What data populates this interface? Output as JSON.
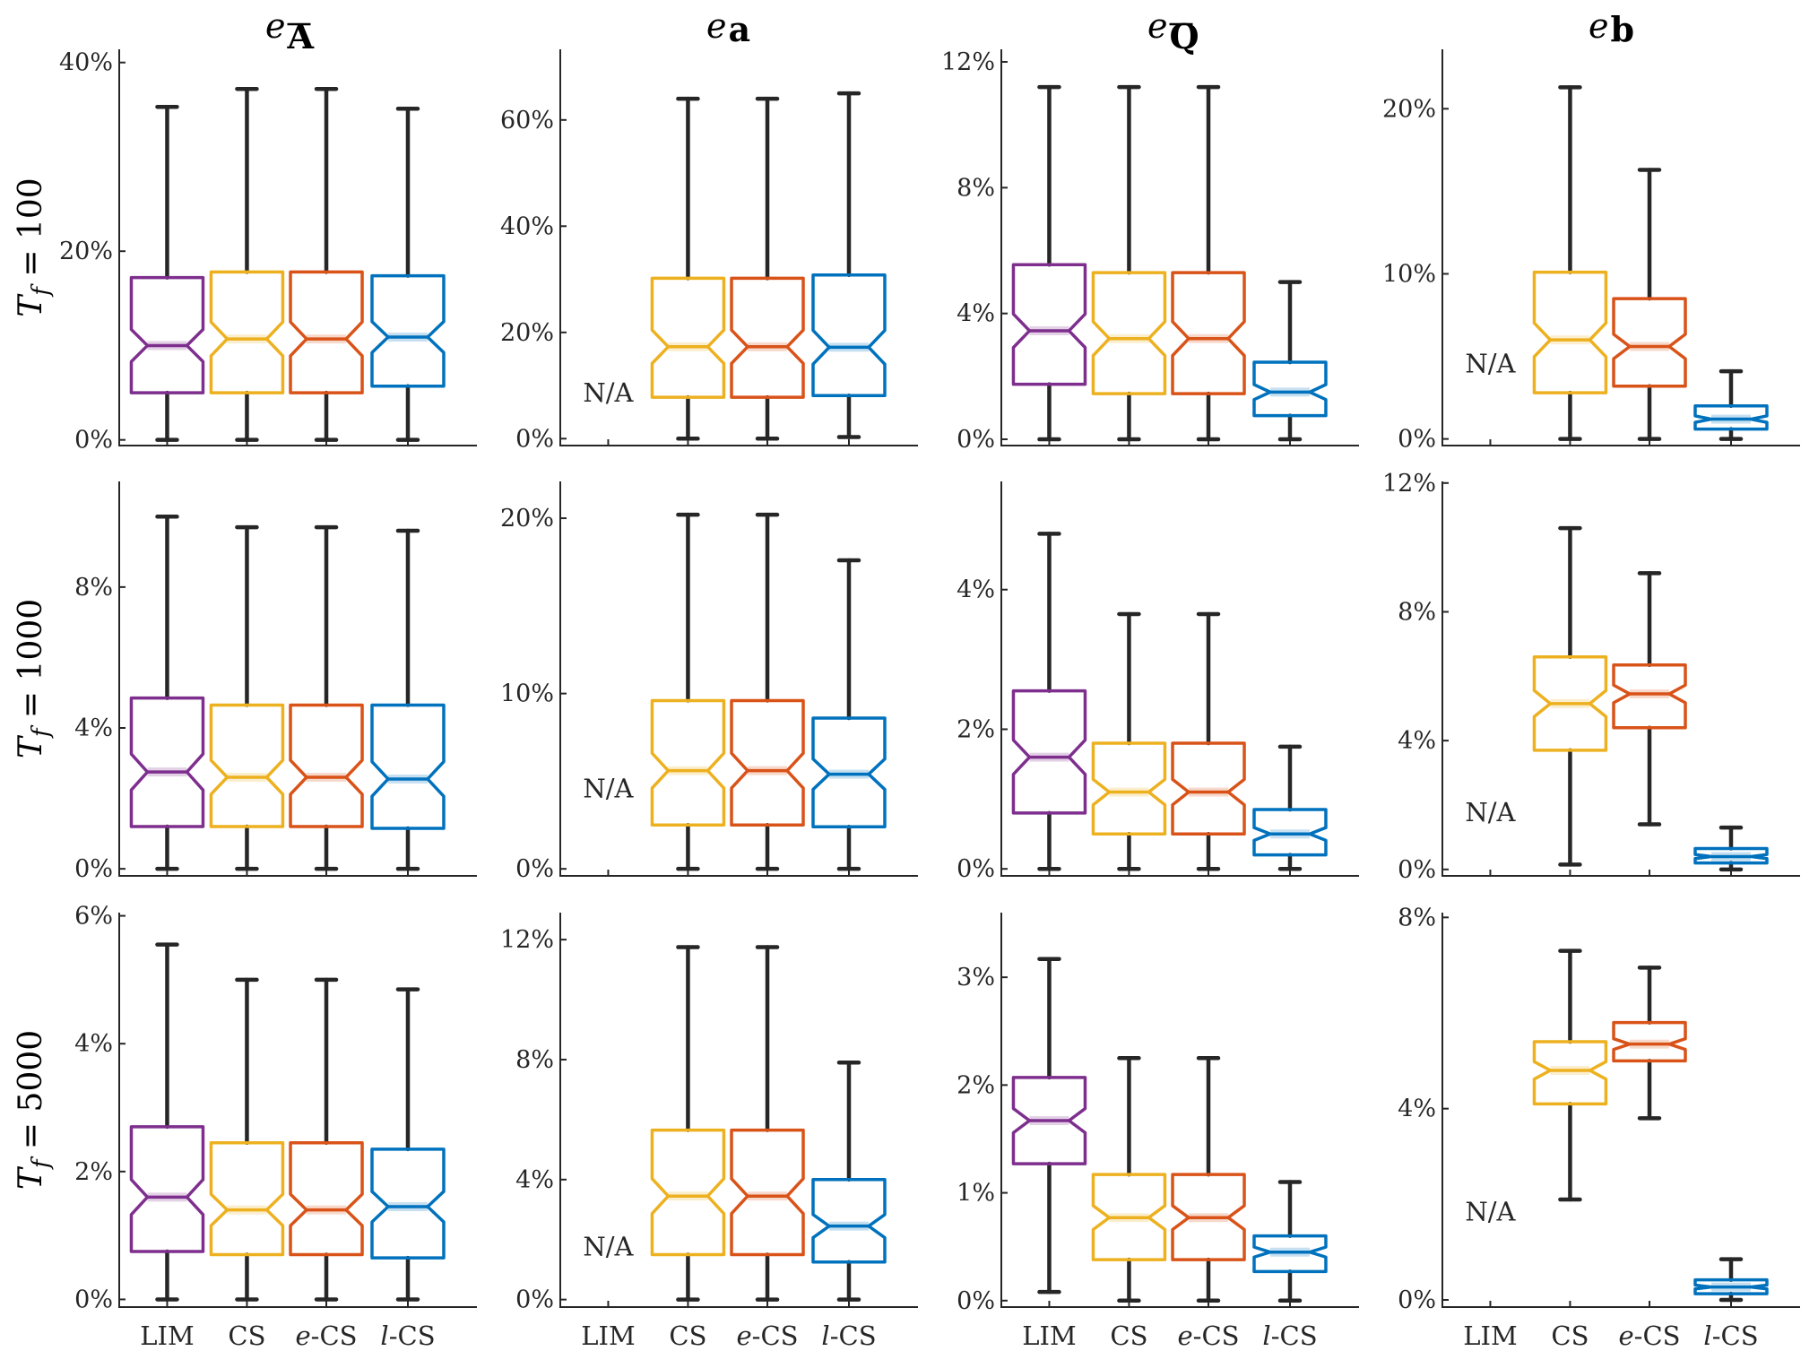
{
  "chart_data": {
    "type": "boxplot",
    "layout": "3 rows x 4 columns of notched box plots",
    "categories": [
      "LIM",
      "CS",
      "e-CS",
      "l-CS"
    ],
    "categories_display": [
      [
        {
          "t": "LIM",
          "i": false
        }
      ],
      [
        {
          "t": "CS",
          "i": false
        }
      ],
      [
        {
          "t": "e",
          "i": true
        },
        {
          "t": "-CS",
          "i": false
        }
      ],
      [
        {
          "t": "l",
          "i": true
        },
        {
          "t": "-CS",
          "i": false
        }
      ]
    ],
    "colors": {
      "LIM": "#7e2f8e",
      "CS": "#edb120",
      "e-CS": "#d95319",
      "l-CS": "#0072bd"
    },
    "column_titles": [
      {
        "base": "e",
        "sub": "A",
        "overline": true
      },
      {
        "base": "e",
        "sub": "a",
        "overline": false
      },
      {
        "base": "e",
        "sub": "Q",
        "overline": true
      },
      {
        "base": "e",
        "sub": "b",
        "overline": false
      }
    ],
    "row_labels": [
      {
        "sym": "T",
        "sub": "f",
        "rest": " = 100"
      },
      {
        "sym": "T",
        "sub": "f",
        "rest": " = 1000"
      },
      {
        "sym": "T",
        "sub": "f",
        "rest": " = 5000"
      }
    ],
    "na_label": "N/A",
    "panels": [
      {
        "row": 0,
        "col": 0,
        "ylim": [
          -0.6,
          41.4
        ],
        "yticks": [
          0,
          20,
          40
        ],
        "ytick_labels": [
          "0%",
          "20%",
          "40%"
        ],
        "boxes": [
          {
            "cat": "LIM",
            "min": 0,
            "q1": 5.0,
            "median": 10.0,
            "q3": 17.2,
            "max": 35.3
          },
          {
            "cat": "CS",
            "min": 0,
            "q1": 5.0,
            "median": 10.7,
            "q3": 17.8,
            "max": 37.2
          },
          {
            "cat": "e-CS",
            "min": 0,
            "q1": 5.0,
            "median": 10.7,
            "q3": 17.8,
            "max": 37.2
          },
          {
            "cat": "l-CS",
            "min": 0,
            "q1": 5.7,
            "median": 10.9,
            "q3": 17.4,
            "max": 35.1
          }
        ]
      },
      {
        "row": 0,
        "col": 1,
        "ylim": [
          -1.3,
          73.3
        ],
        "yticks": [
          0,
          20,
          40,
          60
        ],
        "ytick_labels": [
          "0%",
          "20%",
          "40%",
          "60%"
        ],
        "na": "LIM",
        "boxes": [
          {
            "cat": "CS",
            "min": 0,
            "q1": 7.8,
            "median": 17.3,
            "q3": 30.2,
            "max": 64.0
          },
          {
            "cat": "e-CS",
            "min": 0,
            "q1": 7.8,
            "median": 17.3,
            "q3": 30.2,
            "max": 64.0
          },
          {
            "cat": "l-CS",
            "min": 0.3,
            "q1": 8.1,
            "median": 17.2,
            "q3": 30.8,
            "max": 65.0
          }
        ]
      },
      {
        "row": 0,
        "col": 2,
        "ylim": [
          -0.2,
          12.4
        ],
        "yticks": [
          0,
          4,
          8,
          12
        ],
        "ytick_labels": [
          "0%",
          "4%",
          "8%",
          "12%"
        ],
        "boxes": [
          {
            "cat": "LIM",
            "min": 0,
            "q1": 1.75,
            "median": 3.45,
            "q3": 5.55,
            "max": 11.2
          },
          {
            "cat": "CS",
            "min": 0,
            "q1": 1.45,
            "median": 3.2,
            "q3": 5.3,
            "max": 11.2
          },
          {
            "cat": "e-CS",
            "min": 0,
            "q1": 1.45,
            "median": 3.2,
            "q3": 5.3,
            "max": 11.2
          },
          {
            "cat": "l-CS",
            "min": 0,
            "q1": 0.75,
            "median": 1.5,
            "q3": 2.45,
            "max": 5.0
          }
        ]
      },
      {
        "row": 0,
        "col": 3,
        "ylim": [
          -0.4,
          23.6
        ],
        "yticks": [
          0,
          10,
          20
        ],
        "ytick_labels": [
          "0%",
          "10%",
          "20%"
        ],
        "na": "LIM",
        "boxes": [
          {
            "cat": "CS",
            "min": 0,
            "q1": 2.8,
            "median": 6.0,
            "q3": 10.1,
            "max": 21.3
          },
          {
            "cat": "e-CS",
            "min": 0,
            "q1": 3.2,
            "median": 5.6,
            "q3": 8.5,
            "max": 16.3
          },
          {
            "cat": "l-CS",
            "min": 0,
            "q1": 0.6,
            "median": 1.2,
            "q3": 2.0,
            "max": 4.1
          }
        ]
      },
      {
        "row": 1,
        "col": 0,
        "ylim": [
          -0.2,
          11.0
        ],
        "yticks": [
          0,
          4,
          8
        ],
        "ytick_labels": [
          "0%",
          "4%",
          "8%"
        ],
        "boxes": [
          {
            "cat": "LIM",
            "min": 0,
            "q1": 1.2,
            "median": 2.75,
            "q3": 4.85,
            "max": 10.0
          },
          {
            "cat": "CS",
            "min": 0,
            "q1": 1.2,
            "median": 2.6,
            "q3": 4.65,
            "max": 9.7
          },
          {
            "cat": "e-CS",
            "min": 0,
            "q1": 1.2,
            "median": 2.6,
            "q3": 4.65,
            "max": 9.7
          },
          {
            "cat": "l-CS",
            "min": 0,
            "q1": 1.15,
            "median": 2.55,
            "q3": 4.65,
            "max": 9.6
          }
        ]
      },
      {
        "row": 1,
        "col": 1,
        "ylim": [
          -0.4,
          22.1
        ],
        "yticks": [
          0,
          10,
          20
        ],
        "ytick_labels": [
          "0%",
          "10%",
          "20%"
        ],
        "na": "LIM",
        "boxes": [
          {
            "cat": "CS",
            "min": 0,
            "q1": 2.5,
            "median": 5.6,
            "q3": 9.6,
            "max": 20.2
          },
          {
            "cat": "e-CS",
            "min": 0,
            "q1": 2.5,
            "median": 5.6,
            "q3": 9.6,
            "max": 20.2
          },
          {
            "cat": "l-CS",
            "min": 0,
            "q1": 2.4,
            "median": 5.4,
            "q3": 8.6,
            "max": 17.6
          }
        ]
      },
      {
        "row": 1,
        "col": 2,
        "ylim": [
          -0.1,
          5.55
        ],
        "yticks": [
          0,
          2,
          4
        ],
        "ytick_labels": [
          "0%",
          "2%",
          "4%"
        ],
        "boxes": [
          {
            "cat": "LIM",
            "min": 0,
            "q1": 0.8,
            "median": 1.6,
            "q3": 2.55,
            "max": 4.8
          },
          {
            "cat": "CS",
            "min": 0,
            "q1": 0.5,
            "median": 1.1,
            "q3": 1.8,
            "max": 3.65
          },
          {
            "cat": "e-CS",
            "min": 0,
            "q1": 0.5,
            "median": 1.1,
            "q3": 1.8,
            "max": 3.65
          },
          {
            "cat": "l-CS",
            "min": 0,
            "q1": 0.2,
            "median": 0.5,
            "q3": 0.85,
            "max": 1.75
          }
        ]
      },
      {
        "row": 1,
        "col": 3,
        "ylim": [
          -0.2,
          12.05
        ],
        "yticks": [
          0,
          4,
          8,
          12
        ],
        "ytick_labels": [
          "0%",
          "4%",
          "8%",
          "12%"
        ],
        "na": "LIM",
        "boxes": [
          {
            "cat": "CS",
            "min": 0.15,
            "q1": 3.7,
            "median": 5.15,
            "q3": 6.6,
            "max": 10.6
          },
          {
            "cat": "e-CS",
            "min": 1.4,
            "q1": 4.4,
            "median": 5.45,
            "q3": 6.35,
            "max": 9.2
          },
          {
            "cat": "l-CS",
            "min": 0,
            "q1": 0.2,
            "median": 0.4,
            "q3": 0.65,
            "max": 1.3
          }
        ]
      },
      {
        "row": 2,
        "col": 0,
        "ylim": [
          -0.12,
          6.05
        ],
        "yticks": [
          0,
          2,
          4,
          6
        ],
        "ytick_labels": [
          "0%",
          "2%",
          "4%",
          "6%"
        ],
        "boxes": [
          {
            "cat": "LIM",
            "min": 0,
            "q1": 0.75,
            "median": 1.6,
            "q3": 2.7,
            "max": 5.55
          },
          {
            "cat": "CS",
            "min": 0,
            "q1": 0.7,
            "median": 1.4,
            "q3": 2.45,
            "max": 5.0
          },
          {
            "cat": "e-CS",
            "min": 0,
            "q1": 0.7,
            "median": 1.4,
            "q3": 2.45,
            "max": 5.0
          },
          {
            "cat": "l-CS",
            "min": 0,
            "q1": 0.65,
            "median": 1.45,
            "q3": 2.35,
            "max": 4.85
          }
        ]
      },
      {
        "row": 2,
        "col": 1,
        "ylim": [
          -0.25,
          12.9
        ],
        "yticks": [
          0,
          4,
          8,
          12
        ],
        "ytick_labels": [
          "0%",
          "4%",
          "8%",
          "12%"
        ],
        "na": "LIM",
        "boxes": [
          {
            "cat": "CS",
            "min": 0,
            "q1": 1.5,
            "median": 3.45,
            "q3": 5.65,
            "max": 11.75
          },
          {
            "cat": "e-CS",
            "min": 0,
            "q1": 1.5,
            "median": 3.45,
            "q3": 5.65,
            "max": 11.75
          },
          {
            "cat": "l-CS",
            "min": 0,
            "q1": 1.25,
            "median": 2.45,
            "q3": 4.0,
            "max": 7.9
          }
        ]
      },
      {
        "row": 2,
        "col": 2,
        "ylim": [
          -0.06,
          3.6
        ],
        "yticks": [
          0,
          1,
          2,
          3
        ],
        "ytick_labels": [
          "0%",
          "1%",
          "2%",
          "3%"
        ],
        "boxes": [
          {
            "cat": "LIM",
            "min": 0.08,
            "q1": 1.27,
            "median": 1.67,
            "q3": 2.07,
            "max": 3.17
          },
          {
            "cat": "CS",
            "min": 0,
            "q1": 0.38,
            "median": 0.77,
            "q3": 1.17,
            "max": 2.25
          },
          {
            "cat": "e-CS",
            "min": 0,
            "q1": 0.38,
            "median": 0.77,
            "q3": 1.17,
            "max": 2.25
          },
          {
            "cat": "l-CS",
            "min": 0,
            "q1": 0.27,
            "median": 0.45,
            "q3": 0.6,
            "max": 1.1
          }
        ]
      },
      {
        "row": 2,
        "col": 3,
        "ylim": [
          -0.15,
          8.1
        ],
        "yticks": [
          0,
          4,
          8
        ],
        "ytick_labels": [
          "0%",
          "4%",
          "8%"
        ],
        "na": "LIM",
        "boxes": [
          {
            "cat": "CS",
            "min": 2.1,
            "q1": 4.1,
            "median": 4.8,
            "q3": 5.4,
            "max": 7.3
          },
          {
            "cat": "e-CS",
            "min": 3.8,
            "q1": 5.0,
            "median": 5.35,
            "q3": 5.8,
            "max": 6.95
          },
          {
            "cat": "l-CS",
            "min": 0,
            "q1": 0.13,
            "median": 0.27,
            "q3": 0.42,
            "max": 0.85
          }
        ]
      }
    ]
  }
}
